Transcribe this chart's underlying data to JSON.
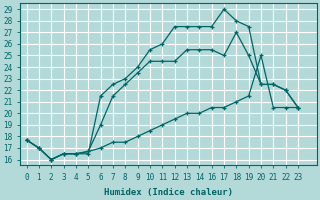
{
  "xlabel": "Humidex (Indice chaleur)",
  "background_color": "#b3d9d9",
  "grid_color": "#ffffff",
  "line_color": "#006666",
  "ylim": [
    15.5,
    29.5
  ],
  "xlim": [
    -0.5,
    23.5
  ],
  "yticks": [
    16,
    17,
    18,
    19,
    20,
    21,
    22,
    23,
    24,
    25,
    26,
    27,
    28,
    29
  ],
  "xtick_labels": [
    "0",
    "1",
    "2",
    "3",
    "4",
    "5",
    "6",
    "7",
    "8",
    "9",
    "10",
    "11",
    "12",
    "13",
    "14",
    "16",
    "17",
    "18",
    "19",
    "20",
    "21",
    "22",
    "23"
  ],
  "line1_x": [
    0,
    1,
    2,
    3,
    4,
    5,
    6,
    7,
    8,
    9,
    10,
    11,
    12,
    13,
    14,
    16,
    17,
    18,
    19,
    20,
    21,
    22,
    23
  ],
  "line1_y": [
    17.7,
    17.0,
    16.0,
    16.5,
    16.5,
    16.5,
    21.5,
    22.5,
    23.0,
    24.0,
    25.5,
    26.0,
    27.5,
    27.5,
    27.5,
    27.5,
    29.0,
    28.0,
    27.5,
    22.5,
    22.5,
    22.0,
    20.5
  ],
  "line2_x": [
    0,
    1,
    2,
    3,
    4,
    5,
    6,
    7,
    8,
    9,
    10,
    11,
    12,
    13,
    14,
    16,
    17,
    18,
    19,
    20,
    21,
    22,
    23
  ],
  "line2_y": [
    17.7,
    17.0,
    16.0,
    16.5,
    16.5,
    16.7,
    19.0,
    21.5,
    22.5,
    23.5,
    24.5,
    24.5,
    24.5,
    25.5,
    25.5,
    25.5,
    25.0,
    27.0,
    25.0,
    22.5,
    22.5,
    22.0,
    20.5
  ],
  "line3_x": [
    0,
    1,
    2,
    3,
    4,
    5,
    6,
    7,
    8,
    9,
    10,
    11,
    12,
    13,
    14,
    16,
    17,
    18,
    19,
    20,
    21,
    22,
    23
  ],
  "line3_y": [
    17.7,
    17.0,
    16.0,
    16.5,
    16.5,
    16.7,
    17.0,
    17.5,
    17.5,
    18.0,
    18.5,
    19.0,
    19.5,
    20.0,
    20.0,
    20.5,
    20.5,
    21.0,
    21.5,
    25.0,
    20.5,
    20.5,
    20.5
  ]
}
